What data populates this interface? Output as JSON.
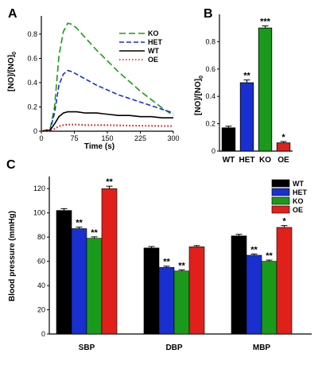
{
  "panels": {
    "a": "A",
    "b": "B",
    "c": "C"
  },
  "chart_data": [
    {
      "id": "A",
      "type": "line",
      "xlabel": "Time (s)",
      "ylabel": "[NO]/[NO]",
      "ylabel_sub": "0",
      "xlim": [
        0,
        300
      ],
      "ylim": [
        0,
        0.95
      ],
      "xticks": [
        0,
        75,
        150,
        225,
        300
      ],
      "yticks": [
        0,
        0.2,
        0.4,
        0.6,
        0.8
      ],
      "legend_position": "top-right",
      "series": [
        {
          "name": "KO",
          "color": "#1a9a1a",
          "dash": "8,4",
          "x": [
            0,
            20,
            30,
            40,
            50,
            60,
            70,
            80,
            100,
            125,
            150,
            175,
            200,
            225,
            250,
            275,
            300
          ],
          "y": [
            0,
            0.02,
            0.2,
            0.62,
            0.82,
            0.89,
            0.88,
            0.85,
            0.77,
            0.67,
            0.58,
            0.49,
            0.41,
            0.33,
            0.26,
            0.19,
            0.13
          ]
        },
        {
          "name": "HET",
          "color": "#1a2fd0",
          "dash": "6,3",
          "x": [
            0,
            20,
            30,
            40,
            50,
            60,
            70,
            80,
            100,
            125,
            150,
            175,
            200,
            225,
            250,
            275,
            300
          ],
          "y": [
            0,
            0.01,
            0.15,
            0.38,
            0.47,
            0.5,
            0.49,
            0.47,
            0.43,
            0.38,
            0.34,
            0.3,
            0.27,
            0.24,
            0.21,
            0.18,
            0.15
          ]
        },
        {
          "name": "WT",
          "color": "#000000",
          "dash": "",
          "x": [
            0,
            20,
            30,
            40,
            50,
            60,
            70,
            80,
            100,
            125,
            150,
            175,
            200,
            225,
            250,
            275,
            300
          ],
          "y": [
            0,
            0.01,
            0.06,
            0.12,
            0.15,
            0.16,
            0.16,
            0.16,
            0.15,
            0.15,
            0.14,
            0.13,
            0.13,
            0.12,
            0.12,
            0.11,
            0.11
          ]
        },
        {
          "name": "OE",
          "color": "#d01a1a",
          "dash": "1.5,2.5",
          "x": [
            0,
            20,
            30,
            40,
            50,
            60,
            70,
            80,
            100,
            125,
            150,
            175,
            200,
            225,
            250,
            275,
            300
          ],
          "y": [
            0,
            0.005,
            0.02,
            0.04,
            0.05,
            0.055,
            0.055,
            0.055,
            0.05,
            0.05,
            0.05,
            0.048,
            0.046,
            0.045,
            0.044,
            0.043,
            0.042
          ]
        }
      ]
    },
    {
      "id": "B",
      "type": "bar",
      "ylabel": "[NO]/[NO]",
      "ylabel_sub": "0",
      "categories": [
        "WT",
        "HET",
        "KO",
        "OE"
      ],
      "values": [
        0.17,
        0.5,
        0.9,
        0.06
      ],
      "errors": [
        0.012,
        0.02,
        0.015,
        0.01
      ],
      "colors": [
        "#000000",
        "#1a2fd0",
        "#1a9a1a",
        "#e0201a"
      ],
      "significance": [
        "",
        "**",
        "***",
        "*"
      ],
      "ylim": [
        0,
        1.0
      ],
      "yticks": [
        0,
        0.2,
        0.4,
        0.6,
        0.8
      ]
    },
    {
      "id": "C",
      "type": "bar",
      "ylabel": "Blood pressure (mmHg)",
      "categories": [
        "SBP",
        "DBP",
        "MBP"
      ],
      "ylim": [
        0,
        130
      ],
      "yticks": [
        0,
        20,
        40,
        60,
        80,
        100,
        120
      ],
      "legend_position": "top-right",
      "series": [
        {
          "name": "WT",
          "color": "#000000",
          "values": [
            102,
            71,
            81
          ],
          "errors": [
            1.5,
            1.2,
            1.3
          ],
          "significance": [
            "",
            "",
            ""
          ]
        },
        {
          "name": "HET",
          "color": "#1a2fd0",
          "values": [
            87,
            55,
            65
          ],
          "errors": [
            1.2,
            1.0,
            1.0
          ],
          "significance": [
            "**",
            "**",
            "**"
          ]
        },
        {
          "name": "KO",
          "color": "#1a9a1a",
          "values": [
            79,
            52,
            60
          ],
          "errors": [
            1.2,
            1.0,
            1.0
          ],
          "significance": [
            "**",
            "**",
            "**"
          ]
        },
        {
          "name": "OE",
          "color": "#e0201a",
          "values": [
            120,
            72,
            88
          ],
          "errors": [
            2.0,
            1.0,
            1.5
          ],
          "significance": [
            "**",
            "",
            "*"
          ]
        }
      ]
    }
  ]
}
